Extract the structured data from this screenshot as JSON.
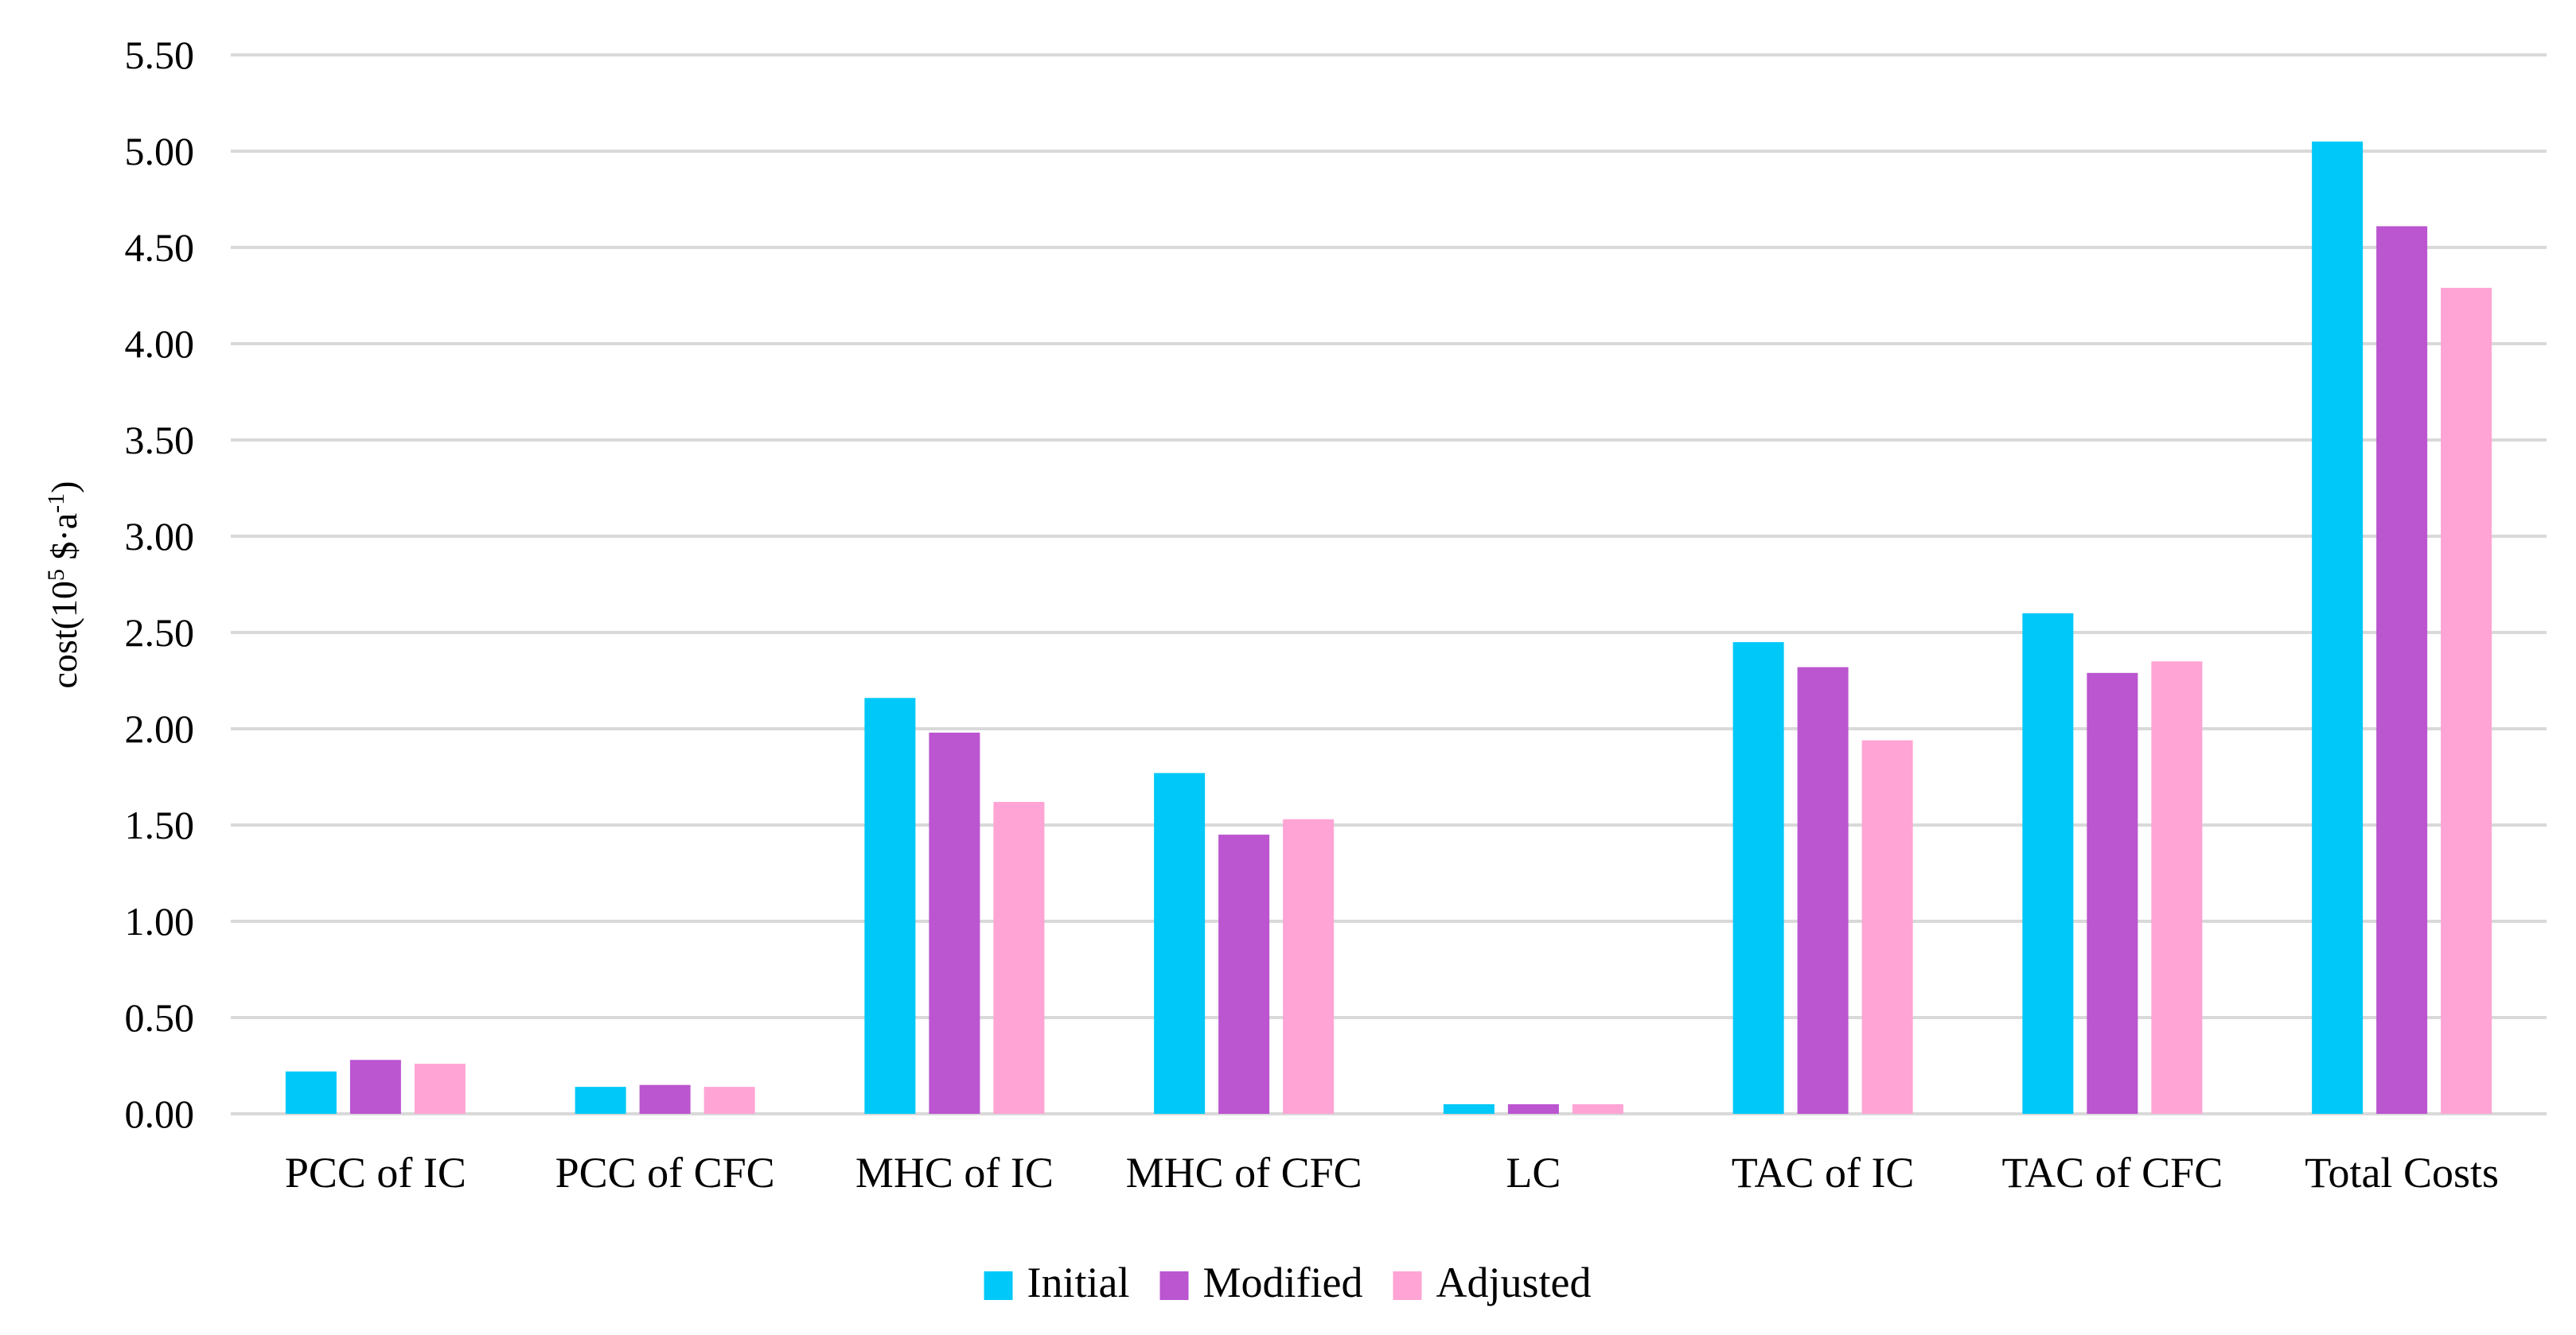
{
  "chart_data": {
    "type": "bar",
    "title": "",
    "xlabel": "",
    "ylabel": {
      "prefix": "cost(10",
      "exp": "5",
      "middle": " $·a",
      "exp2": "-1",
      "suffix": ")"
    },
    "ylim": [
      0,
      5.5
    ],
    "ytick_step": 0.5,
    "yticks": [
      "0.00",
      "0.50",
      "1.00",
      "1.50",
      "2.00",
      "2.50",
      "3.00",
      "3.50",
      "4.00",
      "4.50",
      "5.00",
      "5.50"
    ],
    "grid": true,
    "legend_position": "bottom-center",
    "categories": [
      "PCC of IC",
      "PCC of CFC",
      "MHC of IC",
      "MHC of CFC",
      "LC",
      "TAC of IC",
      "TAC of CFC",
      "Total Costs"
    ],
    "series": [
      {
        "name": "Initial",
        "color": "#00c8f8",
        "values": [
          0.22,
          0.14,
          2.16,
          1.77,
          0.05,
          2.45,
          2.6,
          5.05
        ]
      },
      {
        "name": "Modified",
        "color": "#bb55d0",
        "values": [
          0.28,
          0.15,
          1.98,
          1.45,
          0.05,
          2.32,
          2.29,
          4.61
        ]
      },
      {
        "name": "Adjusted",
        "color": "#ffa4d4",
        "values": [
          0.26,
          0.14,
          1.62,
          1.53,
          0.05,
          1.94,
          2.35,
          4.29
        ]
      }
    ]
  }
}
